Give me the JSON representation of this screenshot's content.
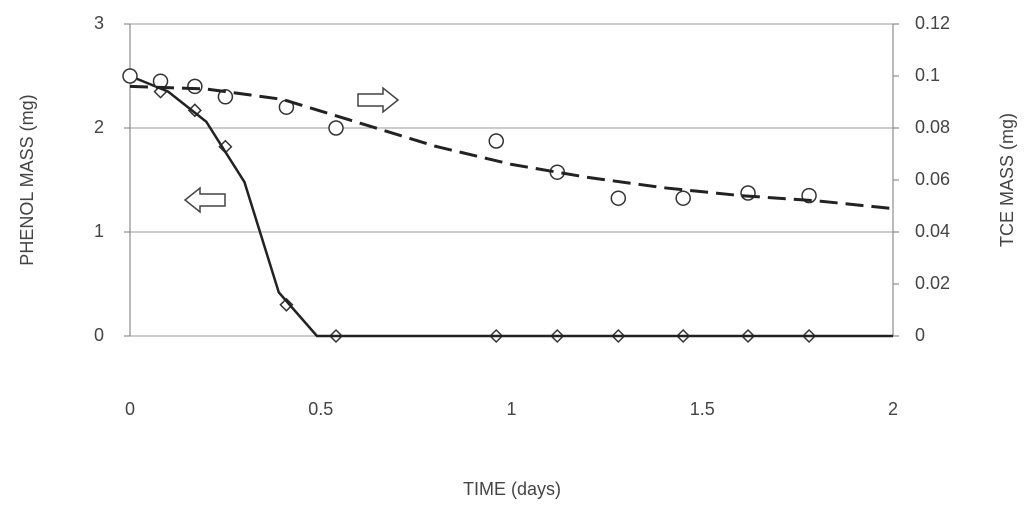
{
  "chart_data": {
    "type": "line",
    "xlabel": "TIME (days)",
    "ylabel": "PHENOL MASS (mg)",
    "y2label": "TCE MASS (mg)",
    "xlim": [
      0,
      2
    ],
    "xticks": [
      0,
      0.5,
      1,
      1.5,
      2
    ],
    "ylim": [
      0,
      3
    ],
    "yticks": [
      0,
      1,
      2,
      3
    ],
    "y2lim": [
      0,
      0.12
    ],
    "y2ticks": [
      0,
      0.02,
      0.04,
      0.06,
      0.08,
      0.1,
      0.12
    ],
    "grid": true,
    "series": [
      {
        "mode": "markers",
        "marker": "diamond",
        "color": "#333333",
        "x": [
          0,
          0.08,
          0.17,
          0.25,
          0.41,
          0.54,
          0.96,
          1.12,
          1.28,
          1.45,
          1.62,
          1.78
        ],
        "values": [
          2.5,
          2.35,
          2.17,
          1.82,
          0.3,
          0,
          0,
          0,
          0,
          0,
          0,
          0
        ]
      },
      {
        "mode": "line",
        "dash": false,
        "color": "#222222",
        "x": [
          0,
          0.1,
          0.2,
          0.3,
          0.39,
          0.49,
          2
        ],
        "values": [
          2.5,
          2.35,
          2.06,
          1.48,
          0.42,
          0,
          0
        ]
      },
      {
        "mode": "markers",
        "marker": "circle",
        "axis": "y2",
        "color": "#333333",
        "x": [
          0,
          0.08,
          0.17,
          0.25,
          0.41,
          0.54,
          0.96,
          1.12,
          1.28,
          1.45,
          1.62,
          1.78
        ],
        "values": [
          0.1,
          0.098,
          0.096,
          0.092,
          0.088,
          0.08,
          0.075,
          0.063,
          0.053,
          0.053,
          0.055,
          0.054
        ]
      },
      {
        "mode": "line",
        "dash": true,
        "axis": "y2",
        "color": "#222222",
        "x": [
          0,
          0.2,
          0.4,
          0.6,
          0.8,
          1,
          1.2,
          1.4,
          1.6,
          1.8,
          2
        ],
        "values": [
          0.096,
          0.095,
          0.091,
          0.082,
          0.073,
          0.066,
          0.061,
          0.057,
          0.054,
          0.052,
          0.049
        ]
      }
    ]
  }
}
